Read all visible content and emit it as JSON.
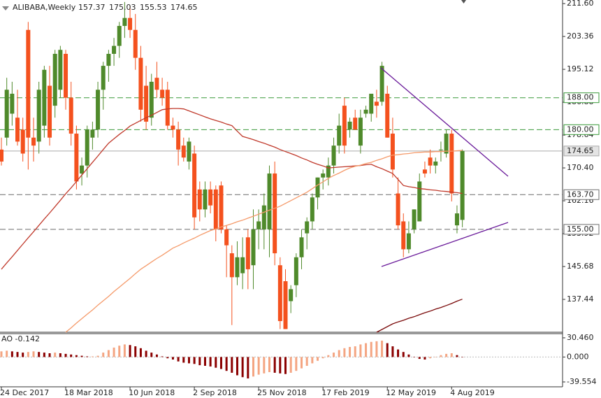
{
  "chart_data": {
    "type": "candlestick",
    "title": "ALIBABA,Weekly",
    "categories": [
      "24 Dec 2017",
      null,
      null,
      null,
      null,
      null,
      null,
      null,
      null,
      null,
      null,
      null,
      "18 Mar 2018",
      null,
      null,
      null,
      null,
      null,
      null,
      null,
      null,
      null,
      null,
      null,
      "10 Jun 2018",
      null,
      null,
      null,
      null,
      null,
      null,
      null,
      null,
      null,
      null,
      null,
      "2 Sep 2018",
      null,
      null,
      null,
      null,
      null,
      null,
      null,
      null,
      null,
      null,
      null,
      "25 Nov 2018",
      null,
      null,
      null,
      null,
      null,
      null,
      null,
      null,
      null,
      null,
      null,
      "17 Feb 2019",
      null,
      null,
      null,
      null,
      null,
      null,
      null,
      null,
      null,
      null,
      null,
      "12 May 2019",
      null,
      null,
      null,
      null,
      null,
      null,
      null,
      null,
      null,
      null,
      null,
      "4 Aug 2019",
      null,
      null
    ],
    "open": [
      175,
      178,
      184,
      183,
      180,
      205,
      178,
      177,
      181,
      191,
      186,
      190,
      199,
      188,
      179,
      169,
      171,
      178,
      180,
      190,
      196,
      199,
      201,
      206,
      208,
      205,
      198,
      191,
      183,
      193,
      190,
      190,
      181,
      180,
      176,
      172,
      174,
      165,
      160,
      165,
      165,
      166,
      155,
      149,
      143,
      144,
      153,
      146,
      155,
      155,
      155,
      169,
      146,
      142,
      137,
      141,
      148,
      154,
      157,
      163,
      168,
      168,
      171,
      176,
      186,
      180,
      183,
      176,
      184,
      184,
      187,
      187,
      189,
      179,
      164,
      157,
      150,
      155,
      157,
      170,
      173,
      171,
      175,
      174,
      179,
      156,
      157.37
    ],
    "high": [
      178,
      193,
      192,
      190,
      183,
      207,
      183,
      192,
      196,
      196,
      200,
      201,
      200,
      192,
      181,
      173,
      181,
      182,
      192,
      197,
      200,
      203,
      207,
      212,
      211,
      209,
      201,
      196,
      194,
      197,
      193,
      192,
      183,
      182,
      178,
      178,
      176,
      167,
      167,
      167,
      166,
      167,
      156,
      151,
      152,
      153,
      155,
      160,
      160,
      164,
      171,
      172,
      148,
      145,
      141,
      149,
      155,
      158,
      164,
      168,
      170,
      173,
      178,
      184,
      188,
      183,
      185,
      185,
      186,
      189,
      190,
      197,
      191,
      183,
      168,
      159,
      157,
      160,
      169,
      172,
      175,
      173,
      177,
      180,
      180,
      161,
      175.03
    ],
    "low": [
      171,
      176,
      181,
      176,
      172,
      170,
      172,
      174,
      178,
      176,
      183,
      188,
      185,
      176,
      165,
      166,
      168,
      175,
      178,
      185,
      192,
      196,
      198,
      203,
      203,
      195,
      182,
      180,
      181,
      188,
      186,
      180,
      178,
      171,
      172,
      170,
      155,
      157,
      158,
      159,
      152,
      154,
      143,
      131,
      141,
      140,
      140,
      140,
      150,
      150,
      148,
      146,
      130,
      130,
      134,
      138,
      145,
      150,
      155,
      160,
      165,
      166,
      169,
      174,
      174,
      178,
      180,
      174,
      183,
      182,
      183,
      186,
      178,
      168,
      155,
      148,
      149,
      154,
      157,
      168,
      169,
      169,
      172,
      173,
      162,
      154,
      155.53
    ],
    "close": [
      172,
      190,
      189,
      177,
      174,
      178,
      176,
      190,
      195,
      178,
      199,
      200,
      188,
      179,
      167,
      171,
      180,
      180,
      190,
      196,
      199,
      201,
      206,
      208,
      205,
      198,
      185,
      182,
      192,
      190,
      188,
      181,
      180,
      175,
      173,
      177,
      158,
      160,
      165,
      161,
      155,
      155,
      151,
      143,
      148,
      148,
      145,
      155,
      157,
      161,
      169,
      149,
      132,
      130,
      140,
      148,
      153,
      157,
      163,
      168,
      169,
      171,
      176,
      181,
      176,
      182,
      180,
      183,
      185,
      189,
      186,
      196,
      178,
      170,
      156,
      150,
      154,
      160,
      167,
      169,
      171,
      172,
      175,
      179,
      164,
      159,
      174.65
    ],
    "up_color": "#4f8a2b",
    "down_color": "#f4511e",
    "series": [
      {
        "name": "MA fast",
        "color": "#c0392b",
        "values": [
          145,
          146.6,
          148.1,
          149.7,
          151.3,
          152.9,
          154.4,
          156,
          157.6,
          159.1,
          160.7,
          162.3,
          163.9,
          165.4,
          167,
          168.6,
          170.2,
          171.8,
          173.4,
          175,
          176.6,
          177.7,
          178.8,
          179.8,
          180.9,
          181.6,
          182.3,
          183,
          183.6,
          184.3,
          185,
          185.2,
          185.3,
          185.3,
          185.2,
          184.7,
          184.2,
          183.7,
          183.2,
          182.7,
          182.3,
          181.9,
          181.4,
          181,
          179.6,
          178.3,
          177.9,
          177.5,
          177,
          176.6,
          176.1,
          175.6,
          175,
          174.5,
          174,
          173.5,
          172.9,
          172.4,
          171.8,
          171.3,
          170.9,
          170.4,
          170.5,
          170.6,
          170.7,
          170.8,
          170.9,
          171,
          171.2,
          171.3,
          170.7,
          170.2,
          169.6,
          169,
          167.5,
          166,
          165.7,
          165.5,
          165.2,
          165.1,
          164.9,
          164.8,
          164.6,
          164.5,
          164.3,
          164.2,
          164
        ]
      },
      {
        "name": "MA slow",
        "color": "#f59a6a",
        "values": [
          null,
          null,
          null,
          null,
          null,
          null,
          null,
          null,
          null,
          null,
          null,
          null,
          129.2,
          130.3,
          131.5,
          132.6,
          133.7,
          134.8,
          136,
          137.1,
          138.2,
          139.4,
          140.5,
          141.6,
          142.7,
          143.9,
          145,
          145.9,
          146.8,
          147.7,
          148.5,
          149.4,
          150.3,
          150.9,
          151.6,
          152.2,
          152.8,
          153.5,
          154.1,
          154.7,
          155.1,
          155.6,
          156,
          156.4,
          156.9,
          157.3,
          157.8,
          158.3,
          158.8,
          159.3,
          159.8,
          160.3,
          160.8,
          161.5,
          162.2,
          162.9,
          163.6,
          164.3,
          165.2,
          166.1,
          166.9,
          167.8,
          168.5,
          169.1,
          169.8,
          170.4,
          170.8,
          171.1,
          171.5,
          171.8,
          172.3,
          172.7,
          173.2,
          173.6,
          173.7,
          173.9,
          174,
          174.2,
          174.3,
          174.4,
          174.4,
          174.5,
          174.5,
          174.6,
          174.6,
          174.7,
          174.8
        ]
      },
      {
        "name": "MA long",
        "color": "#7a0a0a",
        "values": [
          null,
          null,
          null,
          null,
          null,
          null,
          null,
          null,
          null,
          null,
          null,
          null,
          null,
          null,
          null,
          null,
          null,
          null,
          null,
          null,
          null,
          null,
          null,
          null,
          null,
          null,
          null,
          null,
          null,
          null,
          null,
          null,
          null,
          null,
          null,
          null,
          null,
          null,
          null,
          null,
          null,
          null,
          null,
          null,
          null,
          null,
          null,
          null,
          null,
          null,
          null,
          null,
          null,
          null,
          null,
          null,
          null,
          null,
          null,
          null,
          null,
          null,
          null,
          null,
          null,
          null,
          null,
          null,
          null,
          null,
          129.2,
          129.9,
          130.6,
          131.3,
          131.8,
          132.2,
          132.7,
          133.1,
          133.6,
          134.1,
          134.5,
          135,
          135.4,
          135.9,
          136.4,
          137,
          137.5
        ]
      }
    ],
    "ylim": [
      129.2,
      212.5
    ],
    "yticks": [
      {
        "value": 211.6,
        "label": "211.60"
      },
      203.36,
      195.12,
      186.88,
      178.64,
      {
        "value": 170.4,
        "label": "170.40"
      },
      162.16,
      153.92,
      145.68,
      137.44
    ],
    "levels": [
      {
        "value": 188,
        "label": "188.00",
        "color": "#3a9a3a"
      },
      {
        "value": 180,
        "label": "180.00",
        "color": "#3a9a3a"
      },
      {
        "value": 163.7,
        "label": "163.70",
        "color": "#6e6e6e"
      },
      {
        "value": 155,
        "label": "155.00",
        "color": "#6e6e6e"
      }
    ],
    "ao": {
      "name": "AO",
      "values": [
        9,
        10,
        9,
        8,
        7,
        8,
        9,
        8,
        7,
        6,
        7,
        6,
        5,
        4,
        3,
        2,
        1,
        1,
        2,
        7,
        11,
        15,
        18,
        20,
        19,
        17,
        14,
        10,
        7,
        4,
        1,
        -2,
        -4,
        -7,
        -9,
        -10,
        -11,
        -13,
        -14,
        -15,
        -17,
        -19,
        -22,
        -25,
        -29,
        -32,
        -34,
        -31,
        -28,
        -26,
        -24,
        -25,
        -26,
        -27,
        -25,
        -22,
        -18,
        -14,
        -10,
        -6,
        -2,
        3,
        7,
        11,
        14,
        16,
        17,
        20,
        22,
        24,
        25,
        26,
        22,
        17,
        12,
        8,
        4,
        0,
        -3,
        -4,
        -2,
        0,
        3,
        5,
        6,
        3,
        -0.142
      ],
      "up_color": "#f4a582",
      "down_color": "#8b0000",
      "ylim": [
        -47.3,
        37.1
      ],
      "yticks": [
        {
          "value": 30.46,
          "label": "30.460"
        },
        {
          "value": 0,
          "label": "0.000"
        },
        -39.554
      ]
    }
  }
}
